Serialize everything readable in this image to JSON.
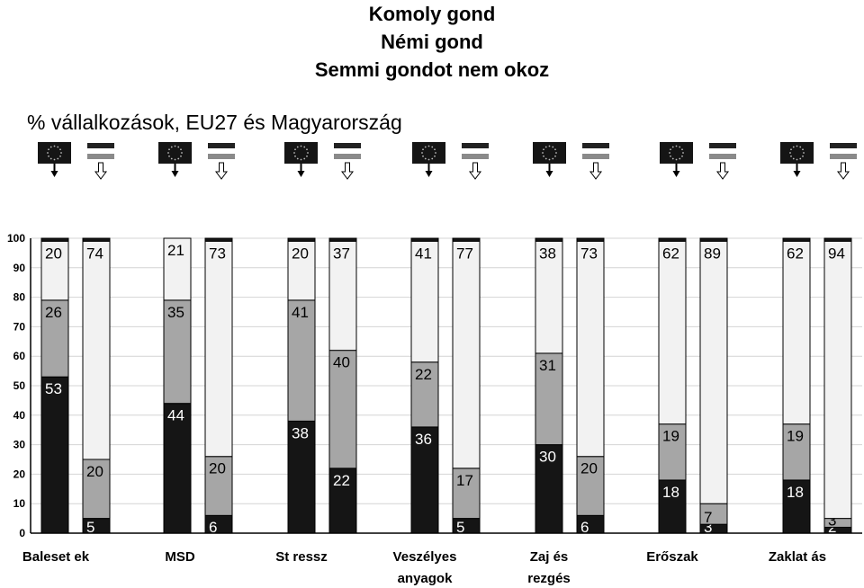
{
  "legend": {
    "items": [
      "Komoly gond",
      "Némi gond",
      "Semmi gondot nem okoz"
    ]
  },
  "subtitle": "% vállalkozások, EU27 és Magyarország",
  "colors": {
    "komoly": "#151515",
    "nemi": "#a6a6a6",
    "semmi": "#f2f2f2",
    "cap": "#151515"
  },
  "icons": {
    "eu": "eu-flag-icon",
    "hu": "hungary-flag-icon",
    "eu_arrow": "solid-down-arrow-icon",
    "hu_arrow": "hollow-down-arrow-icon"
  },
  "chart_data": {
    "type": "bar",
    "stacked": true,
    "ylim": [
      0,
      100
    ],
    "yticks": [
      0,
      10,
      20,
      30,
      40,
      50,
      60,
      70,
      80,
      90,
      100
    ],
    "grid": true,
    "categories": [
      "Balesetek",
      "MSD",
      "Stressz",
      "Veszélyes anyagok",
      "Zaj és rezgés",
      "Erőszak",
      "Zaklatás"
    ],
    "category_labels": [
      [
        "Baleset ek"
      ],
      [
        "MSD"
      ],
      [
        "St ressz"
      ],
      [
        "Veszélyes",
        "anyagok"
      ],
      [
        "Zaj és",
        "rezgés"
      ],
      [
        "Erőszak"
      ],
      [
        "Zaklat ás"
      ]
    ],
    "bars": [
      {
        "category": "Balesetek",
        "group": "EU27",
        "komoly": 53,
        "nemi": 26,
        "semmi": 20
      },
      {
        "category": "Balesetek",
        "group": "Magyarország",
        "komoly": 5,
        "nemi": 20,
        "semmi": 74
      },
      {
        "category": "MSD",
        "group": "EU27",
        "komoly": 44,
        "nemi": 35,
        "semmi": 21
      },
      {
        "category": "MSD",
        "group": "Magyarország",
        "komoly": 6,
        "nemi": 20,
        "semmi": 73
      },
      {
        "category": "Stressz",
        "group": "EU27",
        "komoly": 38,
        "nemi": 41,
        "semmi": 20
      },
      {
        "category": "Stressz",
        "group": "Magyarország",
        "komoly": 22,
        "nemi": 40,
        "semmi": 37
      },
      {
        "category": "Veszélyes anyagok",
        "group": "EU27",
        "komoly": 36,
        "nemi": 22,
        "semmi": 41
      },
      {
        "category": "Veszélyes anyagok",
        "group": "Magyarország",
        "komoly": 5,
        "nemi": 17,
        "semmi": 77
      },
      {
        "category": "Zaj és rezgés",
        "group": "EU27",
        "komoly": 30,
        "nemi": 31,
        "semmi": 38
      },
      {
        "category": "Zaj és rezgés",
        "group": "Magyarország",
        "komoly": 6,
        "nemi": 20,
        "semmi": 73
      },
      {
        "category": "Erőszak",
        "group": "EU27",
        "komoly": 18,
        "nemi": 19,
        "semmi": 62
      },
      {
        "category": "Erőszak",
        "group": "Magyarország",
        "komoly": 3,
        "nemi": 7,
        "semmi": 89
      },
      {
        "category": "Zaklatás",
        "group": "EU27",
        "komoly": 18,
        "nemi": 19,
        "semmi": 62
      },
      {
        "category": "Zaklatás",
        "group": "Magyarország",
        "komoly": 2,
        "nemi": 3,
        "semmi": 94
      }
    ]
  }
}
